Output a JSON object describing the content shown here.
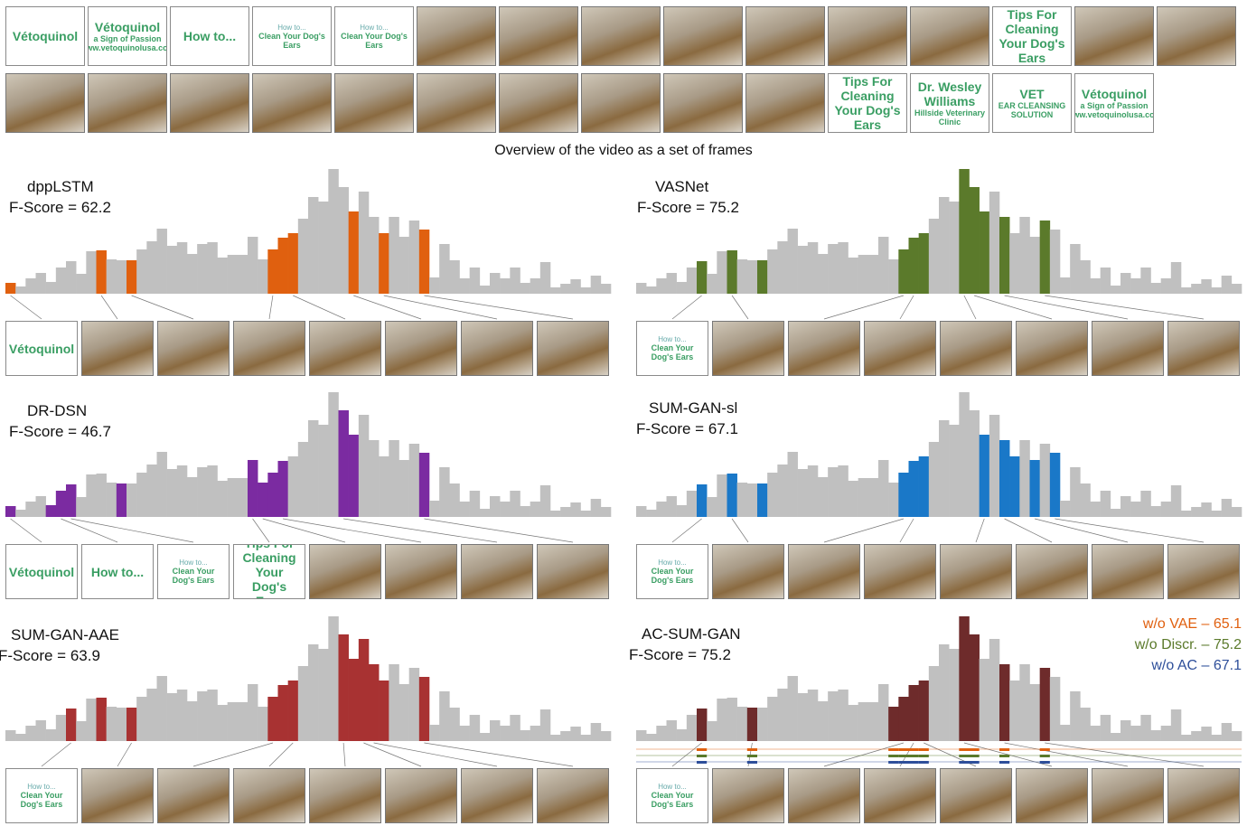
{
  "overview": {
    "rows": [
      [
        [
          "Vétoquinol"
        ],
        [
          "Vétoquinol",
          "a Sign of Passion",
          "www.vetoquinolusa.com"
        ],
        [
          "How to..."
        ],
        [
          "How to...",
          "Clean Your Dog's Ears"
        ],
        [
          "How to...",
          "Clean Your Dog's Ears"
        ],
        null,
        null,
        null,
        null,
        null,
        null,
        null,
        [
          "Tips For Cleaning Your Dog's Ears"
        ],
        null,
        null
      ],
      [
        null,
        null,
        null,
        null,
        null,
        null,
        null,
        null,
        null,
        null,
        [
          "Tips For Cleaning Your Dog's Ears"
        ],
        [
          "Dr. Wesley Williams",
          "Hillside Veterinary Clinic"
        ],
        [
          "VET",
          "EAR CLEANSING SOLUTION"
        ],
        [
          "Vétoquinol",
          "a Sign of Passion",
          "www.vetoquinolusa.com"
        ]
      ]
    ],
    "caption": "Overview of the video as a set of frames"
  },
  "chart_data": [
    {
      "type": "bar",
      "title": "dppLSTM",
      "subtitle": "F-Score = 62.2",
      "color": "#e0600f",
      "ylim": [
        0,
        140
      ],
      "values": [
        12,
        8,
        17,
        23,
        13,
        29,
        36,
        22,
        47,
        48,
        38,
        37,
        37,
        49,
        58,
        72,
        53,
        57,
        44,
        55,
        57,
        40,
        43,
        43,
        63,
        38,
        49,
        62,
        67,
        83,
        107,
        102,
        138,
        118,
        91,
        113,
        85,
        67,
        85,
        63,
        81,
        71,
        18,
        55,
        37,
        17,
        29,
        9,
        23,
        17,
        29,
        12,
        17,
        35,
        7,
        11,
        16,
        7,
        20,
        11
      ],
      "selected": [
        0,
        9,
        12,
        26,
        27,
        28,
        34,
        37,
        41
      ],
      "frames": [
        [
          "Vétoquinol"
        ],
        null,
        null,
        null,
        null,
        null,
        null,
        null
      ]
    },
    {
      "type": "bar",
      "title": "VASNet",
      "subtitle": "F-Score = 75.2",
      "color": "#5b7a2b",
      "ylim": [
        0,
        140
      ],
      "values": [
        12,
        8,
        17,
        23,
        13,
        29,
        36,
        22,
        47,
        48,
        38,
        37,
        37,
        49,
        58,
        72,
        53,
        57,
        44,
        55,
        57,
        40,
        43,
        43,
        63,
        38,
        49,
        62,
        67,
        83,
        107,
        102,
        138,
        118,
        91,
        113,
        85,
        67,
        85,
        63,
        81,
        71,
        18,
        55,
        37,
        17,
        29,
        9,
        23,
        17,
        29,
        12,
        17,
        35,
        7,
        11,
        16,
        7,
        20,
        11
      ],
      "selected": [
        6,
        9,
        12,
        26,
        27,
        28,
        32,
        33,
        34,
        36,
        40
      ],
      "frames": [
        [
          "How to...",
          "Clean Your Dog's Ears"
        ],
        null,
        null,
        null,
        null,
        null,
        null,
        null
      ]
    },
    {
      "type": "bar",
      "title": "DR-DSN",
      "subtitle": "F-Score = 46.7",
      "color": "#7b2ba1",
      "ylim": [
        0,
        140
      ],
      "values": [
        12,
        8,
        17,
        23,
        13,
        29,
        36,
        22,
        47,
        48,
        38,
        37,
        37,
        49,
        58,
        72,
        53,
        57,
        44,
        55,
        57,
        40,
        43,
        43,
        63,
        38,
        49,
        62,
        67,
        83,
        107,
        102,
        138,
        118,
        91,
        113,
        85,
        67,
        85,
        63,
        81,
        71,
        18,
        55,
        37,
        17,
        29,
        9,
        23,
        17,
        29,
        12,
        17,
        35,
        7,
        11,
        16,
        7,
        20,
        11
      ],
      "selected": [
        0,
        4,
        5,
        6,
        11,
        24,
        25,
        26,
        27,
        33,
        34,
        41
      ],
      "frames": [
        [
          "Vétoquinol"
        ],
        [
          "How to..."
        ],
        [
          "How to...",
          "Clean Your Dog's Ears"
        ],
        [
          "Tips For Cleaning Your Dog's Ears"
        ],
        null,
        null,
        null,
        null
      ]
    },
    {
      "type": "bar",
      "title": "SUM-GAN-sl",
      "subtitle": "F-Score = 67.1",
      "color": "#1a78c8",
      "ylim": [
        0,
        140
      ],
      "values": [
        12,
        8,
        17,
        23,
        13,
        29,
        36,
        22,
        47,
        48,
        38,
        37,
        37,
        49,
        58,
        72,
        53,
        57,
        44,
        55,
        57,
        40,
        43,
        43,
        63,
        38,
        49,
        62,
        67,
        83,
        107,
        102,
        138,
        118,
        91,
        113,
        85,
        67,
        85,
        63,
        81,
        71,
        18,
        55,
        37,
        17,
        29,
        9,
        23,
        17,
        29,
        12,
        17,
        35,
        7,
        11,
        16,
        7,
        20,
        11
      ],
      "selected": [
        6,
        9,
        12,
        26,
        27,
        28,
        34,
        36,
        37,
        39,
        41
      ],
      "frames": [
        [
          "How to...",
          "Clean Your Dog's Ears"
        ],
        null,
        null,
        null,
        null,
        null,
        null,
        null
      ]
    },
    {
      "type": "bar",
      "title": "SUM-GAN-AAE",
      "subtitle": "F-Score = 63.9",
      "color": "#a83232",
      "ylim": [
        0,
        140
      ],
      "values": [
        12,
        8,
        17,
        23,
        13,
        29,
        36,
        22,
        47,
        48,
        38,
        37,
        37,
        49,
        58,
        72,
        53,
        57,
        44,
        55,
        57,
        40,
        43,
        43,
        63,
        38,
        49,
        62,
        67,
        83,
        107,
        102,
        138,
        118,
        91,
        113,
        85,
        67,
        85,
        63,
        81,
        71,
        18,
        55,
        37,
        17,
        29,
        9,
        23,
        17,
        29,
        12,
        17,
        35,
        7,
        11,
        16,
        7,
        20,
        11
      ],
      "selected": [
        6,
        9,
        12,
        26,
        27,
        28,
        33,
        34,
        35,
        36,
        37,
        41
      ],
      "frames": [
        [
          "How to...",
          "Clean Your Dog's Ears"
        ],
        null,
        null,
        null,
        null,
        null,
        null,
        null
      ]
    },
    {
      "type": "bar",
      "title": "AC-SUM-GAN",
      "subtitle": "F-Score = 75.2",
      "color": "#6e2b2b",
      "ylim": [
        0,
        140
      ],
      "values": [
        12,
        8,
        17,
        23,
        13,
        29,
        36,
        22,
        47,
        48,
        38,
        37,
        37,
        49,
        58,
        72,
        53,
        57,
        44,
        55,
        57,
        40,
        43,
        43,
        63,
        38,
        49,
        62,
        67,
        83,
        107,
        102,
        138,
        118,
        91,
        113,
        85,
        67,
        85,
        63,
        81,
        71,
        18,
        55,
        37,
        17,
        29,
        9,
        23,
        17,
        29,
        12,
        17,
        35,
        7,
        11,
        16,
        7,
        20,
        11
      ],
      "selected": [
        6,
        11,
        25,
        26,
        27,
        28,
        32,
        33,
        36,
        40
      ],
      "frames": [
        [
          "How to...",
          "Clean Your Dog's Ears"
        ],
        null,
        null,
        null,
        null,
        null,
        null,
        null
      ],
      "annotations": [
        {
          "text": "w/o VAE – 65.1",
          "color": "#e0600f"
        },
        {
          "text": "w/o Discr. – 75.2",
          "color": "#5b7a2b"
        },
        {
          "text": "w/o AC – 67.1",
          "color": "#2e4f9a"
        }
      ]
    }
  ]
}
